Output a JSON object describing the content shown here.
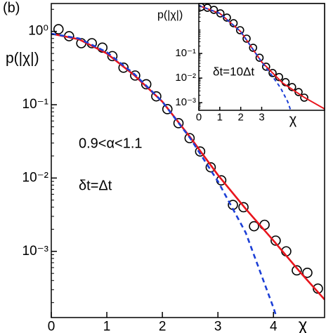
{
  "chart_data": [
    {
      "type": "line",
      "log_y": true,
      "annotations": [
        "(b)",
        "0.9<α<1.1",
        "δt=Δt"
      ],
      "ylabel": "p(|χ|)",
      "xlabel": "χ",
      "xlim": [
        0,
        4.92
      ],
      "xticks": [
        0,
        1,
        2,
        3,
        4
      ],
      "ylim": [
        0.000125,
        2.4
      ],
      "yticks": [
        {
          "value": 1,
          "label": "10⁰"
        },
        {
          "value": 0.1,
          "label": "10⁻¹"
        },
        {
          "value": 0.01,
          "label": "10⁻²"
        },
        {
          "value": 0.001,
          "label": "10⁻³"
        }
      ],
      "series": [
        {
          "color": "#000000",
          "marker": "circle",
          "x": [
            0.13,
            0.32,
            0.54,
            0.73,
            0.92,
            1.1,
            1.3,
            1.51,
            1.71,
            1.89,
            2.09,
            2.29,
            2.49,
            2.68,
            2.87,
            3.06,
            3.27,
            3.46,
            3.65,
            3.84,
            4.04,
            4.23,
            4.42,
            4.61,
            4.8
          ],
          "values": [
            1.07,
            0.86,
            0.69,
            0.69,
            0.6,
            0.46,
            0.32,
            0.25,
            0.19,
            0.13,
            0.087,
            0.056,
            0.035,
            0.023,
            0.014,
            0.0093,
            0.0043,
            0.004,
            0.0022,
            0.0023,
            0.0014,
            0.001,
            0.00055,
            0.00051,
            0.00031
          ]
        },
        {
          "color": "#e8141c",
          "line": "solid",
          "x": [
            0,
            0.5,
            1,
            1.5,
            2,
            2.5,
            3,
            3.5,
            4,
            4.5,
            4.92
          ],
          "values": [
            0.93,
            0.78,
            0.5,
            0.25,
            0.11,
            0.036,
            0.011,
            0.0038,
            0.0014,
            0.0005,
            0.00022
          ]
        },
        {
          "color": "#1c3fd6",
          "line": "dashed",
          "x": [
            0,
            0.5,
            1,
            1.5,
            2,
            2.5,
            3,
            3.5,
            4,
            4.05
          ],
          "values": [
            0.93,
            0.8,
            0.52,
            0.26,
            0.11,
            0.035,
            0.009,
            0.0018,
            0.00017,
            0.00013
          ]
        }
      ]
    },
    {
      "type": "line",
      "log_y": true,
      "annotations": [
        "δt=10Δt"
      ],
      "ylabel": "p(|χ|)",
      "xlabel": "χ",
      "xlim": [
        0,
        6
      ],
      "xticks": [
        0,
        1,
        2,
        3
      ],
      "ylim": [
        0.00049,
        10.7
      ],
      "yticks": [
        {
          "value": 0.1,
          "label": "10⁻¹"
        },
        {
          "value": 0.01,
          "label": "10⁻²"
        },
        {
          "value": 0.001,
          "label": "10⁻³"
        }
      ],
      "series": [
        {
          "color": "#000000",
          "marker": "circle",
          "x": [
            0.1,
            0.41,
            0.72,
            1.03,
            1.34,
            1.66,
            1.97,
            2.28,
            2.59,
            2.9,
            3.21,
            3.52,
            3.83,
            4.14,
            4.45,
            4.76,
            5.03
          ],
          "values": [
            7.7,
            7.2,
            5.9,
            4.25,
            2.86,
            1.69,
            0.88,
            0.4,
            0.17,
            0.067,
            0.029,
            0.016,
            0.011,
            0.0068,
            0.0043,
            0.0027,
            0.0016
          ]
        },
        {
          "color": "#e8141c",
          "line": "solid",
          "x": [
            0,
            1,
            2,
            3,
            4,
            5,
            6
          ],
          "values": [
            8.8,
            4.25,
            0.77,
            0.045,
            0.0063,
            0.0017,
            0.00056
          ]
        },
        {
          "color": "#1c3fd6",
          "line": "dashed",
          "x": [
            0,
            1,
            2,
            3,
            3.48,
            3.9,
            4.24,
            4.38
          ],
          "values": [
            8.8,
            4.25,
            0.77,
            0.045,
            0.013,
            0.004,
            0.0011,
            0.0005
          ]
        }
      ]
    }
  ]
}
